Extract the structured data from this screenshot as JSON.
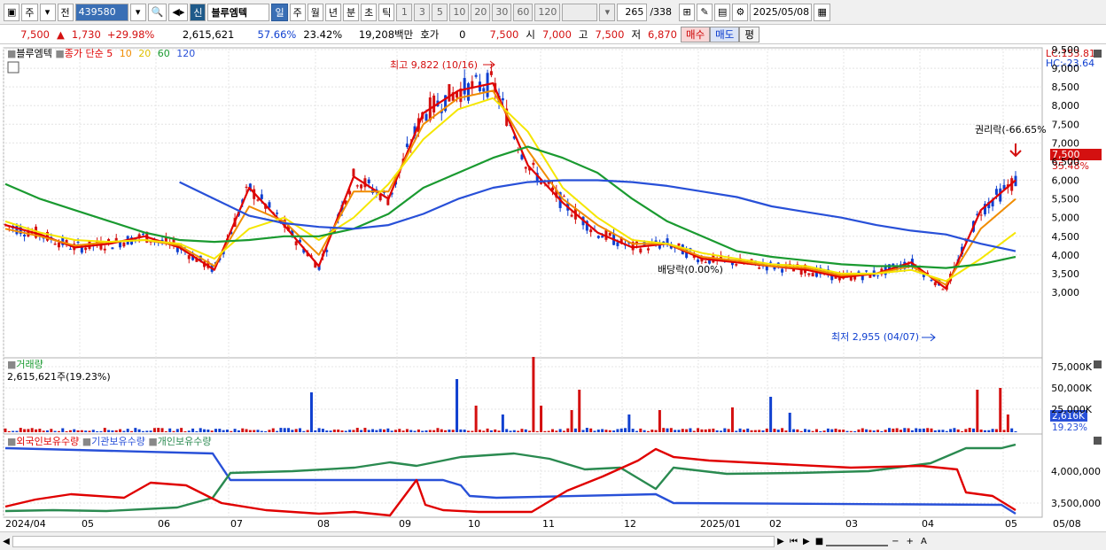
{
  "toolbar": {
    "market": "주",
    "prev_label": "전",
    "stock_code": "439580",
    "new_badge": "신",
    "stock_name": "블루엠텍",
    "periods": [
      "일",
      "주",
      "월",
      "년",
      "분",
      "초",
      "틱"
    ],
    "minutes": [
      "1",
      "3",
      "5",
      "10",
      "20",
      "30",
      "60",
      "120"
    ],
    "count": "265",
    "total": "/338",
    "date": "2025/05/08"
  },
  "quote": {
    "price": "7,500",
    "change": "1,730",
    "change_pct": "+29.98%",
    "volume": "2,615,621",
    "turnover_pct": "57.66%",
    "ratio_pct": "23.42%",
    "amount": "19,208백만",
    "hoga_label": "호가",
    "hoga_value": "0",
    "ask": "7,500",
    "open_label": "시",
    "open": "7,000",
    "high_label": "고",
    "high": "7,500",
    "low_label": "저",
    "low": "6,870",
    "buy_label": "매수",
    "sell_label": "매도",
    "eval_label": "평"
  },
  "legend": {
    "name": "블루엠텍",
    "ma_label": "종가 단순 5",
    "ma10": "10",
    "ma20": "20",
    "ma60": "60",
    "ma120": "120"
  },
  "annotations": {
    "high": "최고 9,822 (10/16)",
    "low": "최저 2,955 (04/07)",
    "dividend": "배당락(0.00%)",
    "rights": "권리락(-66.65%"
  },
  "right_labels": {
    "lc": "LC:153.81",
    "hc": "HC:-23.64",
    "current": "7,500",
    "current_pct": "35.48%",
    "vol_current": "2,616K",
    "vol_pct": "19.23%"
  },
  "volume_panel": {
    "title": "거래량",
    "value": "2,615,621주(19.23%)"
  },
  "holdings_panel": {
    "foreign": "외국인보유수량",
    "institution": "기관보유수량",
    "individual": "개인보유수량"
  },
  "colors": {
    "up": "#d41010",
    "down": "#1040d0",
    "ma5": "#e00000",
    "ma10": "#f08c00",
    "ma20": "#f5e600",
    "ma60": "#1a9a30",
    "ma120": "#2850d8",
    "foreign": "#e00000",
    "institution": "#2850d8",
    "individual": "#2a8a50"
  },
  "chart_data": {
    "type": "line",
    "title": "블루엠텍",
    "price_ticks": [
      "9,500",
      "9,000",
      "8,500",
      "8,000",
      "7,500",
      "7,000",
      "6,500",
      "6,000",
      "5,500",
      "5,000",
      "4,500",
      "4,000",
      "3,500",
      "3,000"
    ],
    "volume_ticks": [
      "75,000K",
      "50,000K",
      "25,000K"
    ],
    "holding_ticks": [
      "4,000,000",
      "3,500,000"
    ],
    "x_labels": [
      "2024/04",
      "05",
      "06",
      "07",
      "08",
      "09",
      "10",
      "11",
      "12",
      "2025/01",
      "02",
      "03",
      "04",
      "05",
      "05/08"
    ],
    "series": [
      {
        "name": "5",
        "values": [
          4800,
          4550,
          4200,
          4300,
          4500,
          4200,
          3600,
          5800,
          4800,
          3700,
          6100,
          5500,
          7800,
          8400,
          8600,
          6400,
          5400,
          4600,
          4200,
          4300,
          3900,
          3800,
          3700,
          3600,
          3400,
          3500,
          3800,
          3100,
          5200,
          6000
        ]
      },
      {
        "name": "10",
        "values": [
          4700,
          4500,
          4250,
          4350,
          4400,
          4250,
          3700,
          5300,
          4900,
          4000,
          5700,
          5700,
          7500,
          8200,
          8400,
          6800,
          5500,
          4800,
          4300,
          4300,
          3950,
          3850,
          3700,
          3650,
          3450,
          3500,
          3700,
          3200,
          4700,
          5500
        ]
      },
      {
        "name": "20",
        "values": [
          4900,
          4600,
          4400,
          4350,
          4400,
          4300,
          3900,
          4700,
          5000,
          4400,
          5000,
          5900,
          7100,
          7900,
          8200,
          7300,
          5800,
          5000,
          4400,
          4300,
          4050,
          3900,
          3750,
          3700,
          3500,
          3500,
          3600,
          3300,
          3900,
          4600
        ]
      },
      {
        "name": "60",
        "values": [
          5900,
          5500,
          5200,
          4900,
          4600,
          4400,
          4350,
          4400,
          4500,
          4500,
          4700,
          5100,
          5800,
          6200,
          6600,
          6900,
          6600,
          6200,
          5500,
          4900,
          4500,
          4100,
          3950,
          3850,
          3750,
          3700,
          3700,
          3650,
          3750,
          3950
        ]
      },
      {
        "name": "120",
        "values": [
          null,
          null,
          null,
          null,
          null,
          5950,
          5500,
          5050,
          4850,
          4750,
          4700,
          4800,
          5100,
          5500,
          5800,
          5950,
          6000,
          6000,
          5950,
          5850,
          5700,
          5550,
          5300,
          5150,
          5000,
          4800,
          4650,
          4550,
          4300,
          4100
        ]
      }
    ]
  }
}
